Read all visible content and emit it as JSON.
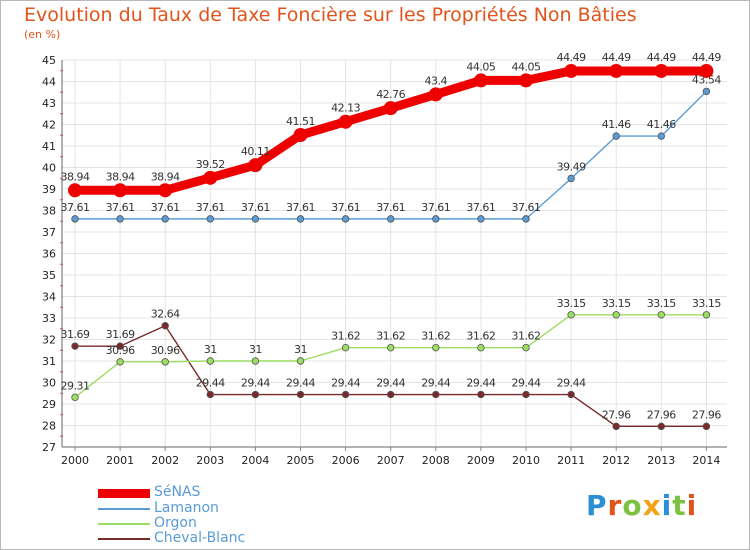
{
  "chart_data": {
    "type": "line",
    "title": "Evolution du Taux de Taxe Foncière sur les Propriétés Non Bâties",
    "ylabel": "(en %)",
    "xlabel": "",
    "ylim": [
      27,
      45
    ],
    "yticks": [
      "27",
      "28",
      "29",
      "30",
      "31",
      "32",
      "33",
      "34",
      "35",
      "36",
      "37",
      "38",
      "39",
      "40",
      "41",
      "42",
      "43",
      "44",
      "45"
    ],
    "categories": [
      "2000",
      "2001",
      "2002",
      "2003",
      "2004",
      "2005",
      "2006",
      "2007",
      "2008",
      "2009",
      "2010",
      "2011",
      "2012",
      "2013",
      "2014"
    ],
    "series": [
      {
        "name": "SéNAS",
        "color": "#ee0000",
        "values": [
          38.94,
          38.94,
          38.94,
          39.52,
          40.11,
          41.51,
          42.13,
          42.76,
          43.4,
          44.05,
          44.05,
          44.49,
          44.49,
          44.49,
          44.49
        ],
        "labels": [
          "38.94",
          "38.94",
          "38.94",
          "39.52",
          "40.11",
          "41.51",
          "42.13",
          "42.76",
          "43.4",
          "44.05",
          "44.05",
          "44.49",
          "44.49",
          "44.49",
          "44.49"
        ]
      },
      {
        "name": "Lamanon",
        "color": "#5b9bd5",
        "values": [
          37.61,
          37.61,
          37.61,
          37.61,
          37.61,
          37.61,
          37.61,
          37.61,
          37.61,
          37.61,
          37.61,
          39.49,
          41.46,
          41.46,
          43.54
        ],
        "labels": [
          "37.61",
          "37.61",
          "37.61",
          "37.61",
          "37.61",
          "37.61",
          "37.61",
          "37.61",
          "37.61",
          "37.61",
          "37.61",
          "39.49",
          "41.46",
          "41.46",
          "43.54"
        ]
      },
      {
        "name": "Orgon",
        "color": "#9bde62",
        "values": [
          29.31,
          30.96,
          30.96,
          31,
          31,
          31,
          31.62,
          31.62,
          31.62,
          31.62,
          31.62,
          33.15,
          33.15,
          33.15,
          33.15
        ],
        "labels": [
          "29.31",
          "30.96",
          "30.96",
          "31",
          "31",
          "31",
          "31.62",
          "31.62",
          "31.62",
          "31.62",
          "31.62",
          "33.15",
          "33.15",
          "33.15",
          "33.15"
        ]
      },
      {
        "name": "Cheval-Blanc",
        "color": "#7a2a2a",
        "values": [
          31.69,
          31.69,
          32.64,
          29.44,
          29.44,
          29.44,
          29.44,
          29.44,
          29.44,
          29.44,
          29.44,
          29.44,
          27.96,
          27.96,
          27.96
        ],
        "labels": [
          "31.69",
          "31.69",
          "32.64",
          "29.44",
          "29.44",
          "29.44",
          "29.44",
          "29.44",
          "29.44",
          "29.44",
          "29.44",
          "29.44",
          "27.96",
          "27.96",
          "27.96"
        ]
      }
    ],
    "legend": [
      "SéNAS",
      "Lamanon",
      "Orgon",
      "Cheval-Blanc"
    ],
    "legend_placement": "bottom-left",
    "grid": true
  },
  "branding": {
    "logo_text": "Proxiti",
    "logo_colors": [
      "#2a8fd6",
      "#e1541b",
      "#7cc242",
      "#f2a318",
      "#2a8fd6",
      "#7cc242",
      "#e1541b"
    ]
  }
}
